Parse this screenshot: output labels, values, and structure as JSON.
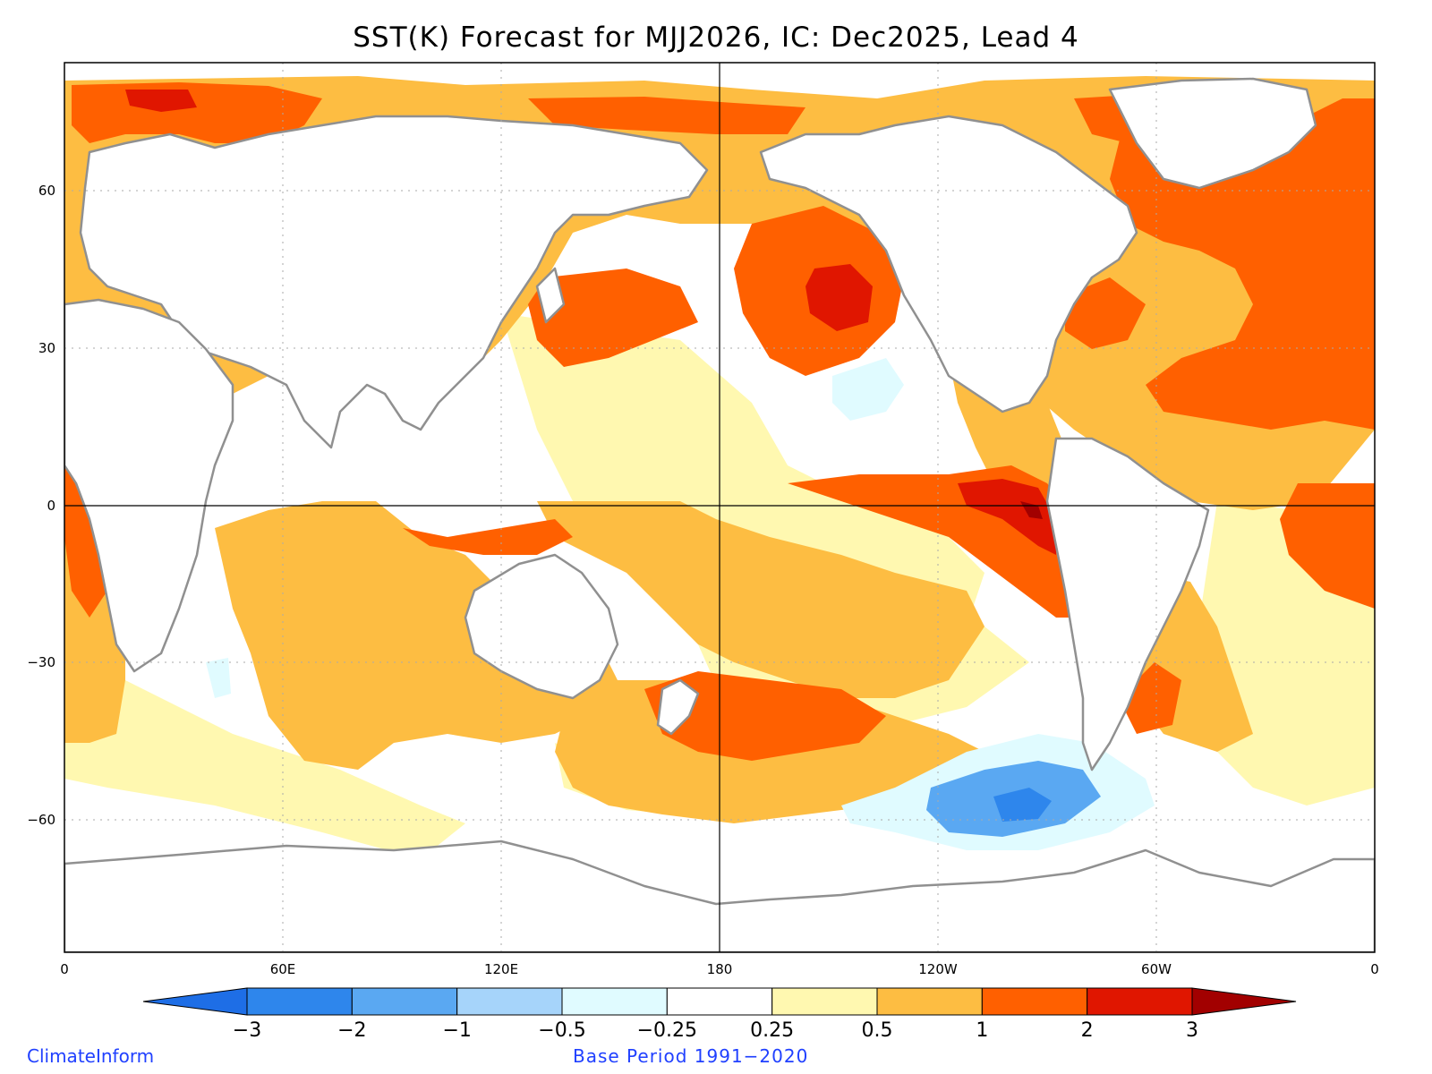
{
  "title": "SST(K) Forecast for MJJ2026, IC: Dec2025, Lead 4",
  "footer": {
    "source": "ClimateInform",
    "base_period": "Base Period 1991−2020"
  },
  "axes": {
    "x_ticks": [
      "0",
      "60E",
      "120E",
      "180",
      "120W",
      "60W",
      "0"
    ],
    "y_ticks": [
      "60",
      "30",
      "0",
      "−30",
      "−60"
    ]
  },
  "colorbar": {
    "labels": [
      "−3",
      "−2",
      "−1",
      "−0.5",
      "−0.25",
      "0.25",
      "0.5",
      "1",
      "2",
      "3"
    ],
    "colors": [
      "#1e6ee6",
      "#2e86ec",
      "#5aa8f2",
      "#a6d4fa",
      "#e0fbff",
      "#ffffff",
      "#fff8b0",
      "#fdbd42",
      "#ff6000",
      "#e01600",
      "#a20000"
    ]
  },
  "map": {
    "projection": "cylindrical",
    "lon_range": [
      0,
      360
    ],
    "lat_range": [
      -85,
      85
    ],
    "gridlines": "dotted",
    "anomaly_colors": {
      "warm_strong": "#e01600",
      "warm_high": "#ff6000",
      "warm_med": "#fdbd42",
      "warm_low": "#fff8b0",
      "neutral": "#ffffff",
      "cool_low": "#e0fbff",
      "cool_med": "#5aa8f2",
      "land": "#ffffff",
      "coast": "#909090"
    }
  }
}
